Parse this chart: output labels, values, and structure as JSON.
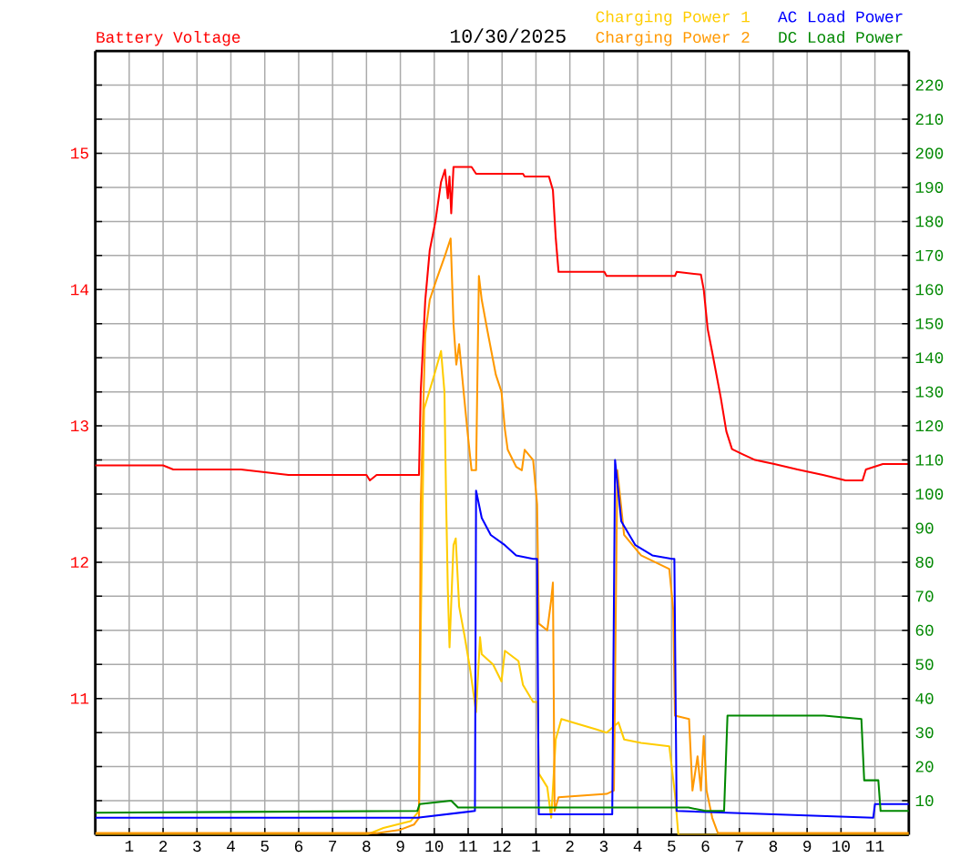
{
  "chart_data": {
    "type": "line",
    "title": "10/30/2025",
    "ylabel": "Battery Voltage",
    "legend": "top right",
    "grid": true,
    "xlim": [
      "2025-10-30T00:00",
      "2025-10-31T00:00"
    ],
    "xticks": [
      {
        "value": "2025-10-30T01:00",
        "label": "1"
      },
      {
        "value": "2025-10-30T02:00",
        "label": "2"
      },
      {
        "value": "2025-10-30T03:00",
        "label": "3"
      },
      {
        "value": "2025-10-30T04:00",
        "label": "4"
      },
      {
        "value": "2025-10-30T05:00",
        "label": "5"
      },
      {
        "value": "2025-10-30T06:00",
        "label": "6"
      },
      {
        "value": "2025-10-30T07:00",
        "label": "7"
      },
      {
        "value": "2025-10-30T08:00",
        "label": "8"
      },
      {
        "value": "2025-10-30T09:00",
        "label": "9"
      },
      {
        "value": "2025-10-30T10:00",
        "label": "10"
      },
      {
        "value": "2025-10-30T11:00",
        "label": "11"
      },
      {
        "value": "2025-10-30T12:00",
        "label": "12"
      },
      {
        "value": "2025-10-30T13:00",
        "label": "1"
      },
      {
        "value": "2025-10-30T14:00",
        "label": "2"
      },
      {
        "value": "2025-10-30T15:00",
        "label": "3"
      },
      {
        "value": "2025-10-30T16:00",
        "label": "4"
      },
      {
        "value": "2025-10-30T17:00",
        "label": "5"
      },
      {
        "value": "2025-10-30T18:00",
        "label": "6"
      },
      {
        "value": "2025-10-30T19:00",
        "label": "7"
      },
      {
        "value": "2025-10-30T20:00",
        "label": "8"
      },
      {
        "value": "2025-10-30T21:00",
        "label": "9"
      },
      {
        "value": "2025-10-30T22:00",
        "label": "10"
      },
      {
        "value": "2025-10-30T23:00",
        "label": "11"
      }
    ],
    "ylim": [
      10,
      15.75
    ],
    "yticks": [
      {
        "value": 10.25,
        "label": null
      },
      {
        "value": 10.5,
        "label": null
      },
      {
        "value": 10.75,
        "label": null
      },
      11,
      {
        "value": 11.25,
        "label": null
      },
      {
        "value": 11.5,
        "label": null
      },
      {
        "value": 11.75,
        "label": null
      },
      12,
      {
        "value": 12.25,
        "label": null
      },
      {
        "value": 12.5,
        "label": null
      },
      {
        "value": 12.75,
        "label": null
      },
      13,
      {
        "value": 13.25,
        "label": null
      },
      {
        "value": 13.5,
        "label": null
      },
      {
        "value": 13.75,
        "label": null
      },
      14,
      {
        "value": 14.25,
        "label": null
      },
      {
        "value": 14.5,
        "label": null
      },
      {
        "value": 14.75,
        "label": null
      },
      15,
      {
        "value": 15.25,
        "label": null
      },
      {
        "value": 15.5,
        "label": null
      }
    ],
    "y2lim": [
      0,
      230
    ],
    "y2ticks": [
      10,
      20,
      30,
      40,
      50,
      60,
      70,
      80,
      90,
      100,
      110,
      120,
      130,
      140,
      150,
      160,
      170,
      180,
      190,
      200,
      210,
      220
    ],
    "series": [
      {
        "color": "#ff0000",
        "axis": "y",
        "x": [
          "2025-10-30T00:00",
          "2025-10-30T02:00",
          "2025-10-30T02:18",
          "2025-10-30T04:18",
          "2025-10-30T05:00",
          "2025-10-30T05:42",
          "2025-10-30T08:00",
          "2025-10-30T08:06",
          "2025-10-30T08:18",
          "2025-10-30T09:33",
          "2025-10-30T09:36",
          "2025-10-30T09:44",
          "2025-10-30T09:52",
          "2025-10-30T10:02",
          "2025-10-30T10:12",
          "2025-10-30T10:19",
          "2025-10-30T10:24",
          "2025-10-30T10:27",
          "2025-10-30T10:30",
          "2025-10-30T10:34",
          "2025-10-30T11:06",
          "2025-10-30T11:14",
          "2025-10-30T12:37",
          "2025-10-30T12:40",
          "2025-10-30T13:23",
          "2025-10-30T13:30",
          "2025-10-30T13:35",
          "2025-10-30T13:40",
          "2025-10-30T15:01",
          "2025-10-30T15:05",
          "2025-10-30T17:06",
          "2025-10-30T17:09",
          "2025-10-30T17:52",
          "2025-10-30T17:57",
          "2025-10-30T18:04",
          "2025-10-30T18:12",
          "2025-10-30T18:27",
          "2025-10-30T18:37",
          "2025-10-30T18:47",
          "2025-10-30T19:07",
          "2025-10-30T19:28",
          "2025-10-30T20:02",
          "2025-10-30T20:43",
          "2025-10-30T21:28",
          "2025-10-30T22:08",
          "2025-10-30T22:38",
          "2025-10-30T22:44",
          "2025-10-30T23:14",
          "2025-10-31T00:00"
        ],
        "values": [
          12.71,
          12.71,
          12.68,
          12.68,
          12.66,
          12.64,
          12.64,
          12.6,
          12.64,
          12.64,
          13.25,
          13.92,
          14.29,
          14.5,
          14.79,
          14.88,
          14.67,
          14.83,
          14.56,
          14.9,
          14.9,
          14.85,
          14.85,
          14.83,
          14.83,
          14.73,
          14.38,
          14.13,
          14.13,
          14.1,
          14.1,
          14.13,
          14.11,
          14.0,
          13.71,
          13.54,
          13.21,
          12.96,
          12.83,
          12.79,
          12.75,
          12.72,
          12.68,
          12.64,
          12.6,
          12.6,
          12.68,
          12.72,
          12.72
        ]
      },
      {
        "name": "Charging Power 1",
        "color": "#ffcc00",
        "axis": "y2",
        "x": [
          "2025-10-30T00:00",
          "2025-10-30T08:00",
          "2025-10-30T08:30",
          "2025-10-30T09:18",
          "2025-10-30T09:33",
          "2025-10-30T09:36",
          "2025-10-30T09:42",
          "2025-10-30T10:00",
          "2025-10-30T10:12",
          "2025-10-30T10:18",
          "2025-10-30T10:21",
          "2025-10-30T10:24",
          "2025-10-30T10:27",
          "2025-10-30T10:34",
          "2025-10-30T10:38",
          "2025-10-30T10:44",
          "2025-10-30T10:54",
          "2025-10-30T11:04",
          "2025-10-30T11:14",
          "2025-10-30T11:21",
          "2025-10-30T11:24",
          "2025-10-30T11:44",
          "2025-10-30T11:59",
          "2025-10-30T12:05",
          "2025-10-30T12:29",
          "2025-10-30T12:37",
          "2025-10-30T12:55",
          "2025-10-30T13:03",
          "2025-10-30T13:05",
          "2025-10-30T13:20",
          "2025-10-30T13:27",
          "2025-10-30T13:35",
          "2025-10-30T13:45",
          "2025-10-30T14:05",
          "2025-10-30T14:46",
          "2025-10-30T15:05",
          "2025-10-30T15:26",
          "2025-10-30T15:36",
          "2025-10-30T16:06",
          "2025-10-30T16:56",
          "2025-10-30T17:06",
          "2025-10-30T17:12",
          "2025-10-31T00:00"
        ],
        "values": [
          0,
          0,
          2,
          4,
          7,
          60,
          125,
          135,
          142,
          130,
          98,
          72,
          55,
          85,
          87,
          67,
          58,
          48,
          36,
          58,
          53,
          50,
          45,
          54,
          51,
          44,
          39,
          39,
          18,
          14,
          5,
          28,
          34,
          33,
          31,
          30,
          33,
          28,
          27,
          26,
          12,
          0,
          0
        ]
      },
      {
        "name": "Charging Power 2",
        "color": "#ff9900",
        "axis": "y2",
        "x": [
          "2025-10-30T00:00",
          "2025-10-30T08:18",
          "2025-10-30T09:00",
          "2025-10-30T09:24",
          "2025-10-30T09:33",
          "2025-10-30T09:36",
          "2025-10-30T09:44",
          "2025-10-30T09:52",
          "2025-10-30T10:04",
          "2025-10-30T10:19",
          "2025-10-30T10:29",
          "2025-10-30T10:34",
          "2025-10-30T10:39",
          "2025-10-30T10:44",
          "2025-10-30T10:52",
          "2025-10-30T10:59",
          "2025-10-30T11:06",
          "2025-10-30T11:14",
          "2025-10-30T11:19",
          "2025-10-30T11:24",
          "2025-10-30T11:34",
          "2025-10-30T11:49",
          "2025-10-30T11:59",
          "2025-10-30T12:05",
          "2025-10-30T12:10",
          "2025-10-30T12:25",
          "2025-10-30T12:35",
          "2025-10-30T12:40",
          "2025-10-30T12:55",
          "2025-10-30T13:02",
          "2025-10-30T13:05",
          "2025-10-30T13:20",
          "2025-10-30T13:27",
          "2025-10-30T13:30",
          "2025-10-30T13:33",
          "2025-10-30T13:40",
          "2025-10-30T15:05",
          "2025-10-30T15:18",
          "2025-10-30T15:24",
          "2025-10-30T15:36",
          "2025-10-30T16:06",
          "2025-10-30T16:56",
          "2025-10-30T17:03",
          "2025-10-30T17:06",
          "2025-10-30T17:31",
          "2025-10-30T17:37",
          "2025-10-30T17:46",
          "2025-10-30T17:52",
          "2025-10-30T17:57",
          "2025-10-30T18:02",
          "2025-10-30T18:12",
          "2025-10-30T18:22",
          "2025-10-31T00:00"
        ],
        "values": [
          0.5,
          0.5,
          1.5,
          3,
          5,
          97,
          147,
          157,
          163,
          170,
          175,
          150,
          138,
          144,
          130,
          118,
          107,
          107,
          164,
          157,
          148,
          135,
          130,
          119,
          113,
          108,
          107,
          113,
          110,
          97,
          62,
          60,
          69,
          74,
          7,
          11,
          12,
          13,
          107,
          88,
          82,
          78,
          66,
          35,
          34,
          13,
          23,
          13,
          29,
          13,
          5,
          0.5,
          0.5
        ]
      },
      {
        "name": "AC Load Power",
        "color": "#0000ff",
        "axis": "y2",
        "x": [
          "2025-10-30T00:00",
          "2025-10-30T09:30",
          "2025-10-30T11:12",
          "2025-10-30T11:14",
          "2025-10-30T11:24",
          "2025-10-30T11:40",
          "2025-10-30T12:05",
          "2025-10-30T12:25",
          "2025-10-30T12:55",
          "2025-10-30T13:02",
          "2025-10-30T13:05",
          "2025-10-30T15:15",
          "2025-10-30T15:20",
          "2025-10-30T15:31",
          "2025-10-30T15:56",
          "2025-10-30T16:26",
          "2025-10-30T17:01",
          "2025-10-30T17:05",
          "2025-10-30T17:09",
          "2025-10-30T22:57",
          "2025-10-30T23:00",
          "2025-10-31T00:00"
        ],
        "values": [
          5,
          5,
          7,
          101,
          93,
          88,
          85,
          82,
          81,
          81,
          6,
          6,
          110,
          92,
          85,
          82,
          81,
          81,
          7,
          5,
          9,
          9
        ]
      },
      {
        "name": "DC Load Power",
        "color": "#008800",
        "axis": "y2",
        "x": [
          "2025-10-30T00:00",
          "2025-10-30T09:30",
          "2025-10-30T09:34",
          "2025-10-30T10:30",
          "2025-10-30T10:42",
          "2025-10-30T17:30",
          "2025-10-30T18:00",
          "2025-10-30T18:33",
          "2025-10-30T18:39",
          "2025-10-30T19:30",
          "2025-10-30T21:30",
          "2025-10-30T22:36",
          "2025-10-30T22:41",
          "2025-10-30T23:06",
          "2025-10-30T23:10",
          "2025-10-31T00:00"
        ],
        "values": [
          6.5,
          7,
          9,
          10,
          8,
          8,
          7,
          7,
          35,
          35,
          35,
          34,
          16,
          16,
          7,
          7
        ]
      }
    ]
  }
}
